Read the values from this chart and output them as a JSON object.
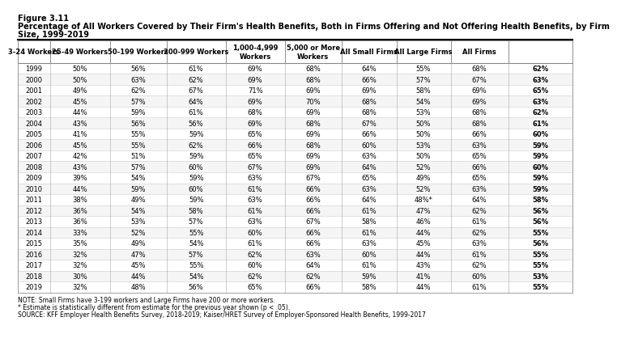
{
  "figure_label": "Figure 3.11",
  "title_line1": "Percentage of All Workers Covered by Their Firm's Health Benefits, Both in Firms Offering and Not Offering Health Benefits, by Firm",
  "title_line2": "Size, 1999-2019",
  "columns": [
    "3-24 Workers",
    "25-49 Workers",
    "50-199 Workers",
    "200-999 Workers",
    "1,000-4,999\nWorkers",
    "5,000 or More\nWorkers",
    "All Small Firms",
    "All Large Firms",
    "All Firms"
  ],
  "years": [
    1999,
    2000,
    2001,
    2002,
    2003,
    2004,
    2005,
    2006,
    2007,
    2008,
    2009,
    2010,
    2011,
    2012,
    2013,
    2014,
    2015,
    2016,
    2017,
    2018,
    2019
  ],
  "data": [
    [
      "50%",
      "56%",
      "61%",
      "69%",
      "68%",
      "64%",
      "55%",
      "68%",
      "62%"
    ],
    [
      "50%",
      "63%",
      "62%",
      "69%",
      "68%",
      "66%",
      "57%",
      "67%",
      "63%"
    ],
    [
      "49%",
      "62%",
      "67%",
      "71%",
      "69%",
      "69%",
      "58%",
      "69%",
      "65%"
    ],
    [
      "45%",
      "57%",
      "64%",
      "69%",
      "70%",
      "68%",
      "54%",
      "69%",
      "63%"
    ],
    [
      "44%",
      "59%",
      "61%",
      "68%",
      "69%",
      "68%",
      "53%",
      "68%",
      "62%"
    ],
    [
      "43%",
      "56%",
      "56%",
      "69%",
      "68%",
      "67%",
      "50%",
      "68%",
      "61%"
    ],
    [
      "41%",
      "55%",
      "59%",
      "65%",
      "69%",
      "66%",
      "50%",
      "66%",
      "60%"
    ],
    [
      "45%",
      "55%",
      "62%",
      "66%",
      "68%",
      "60%",
      "53%",
      "63%",
      "59%"
    ],
    [
      "42%",
      "51%",
      "59%",
      "65%",
      "69%",
      "63%",
      "50%",
      "65%",
      "59%"
    ],
    [
      "43%",
      "57%",
      "60%",
      "67%",
      "69%",
      "64%",
      "52%",
      "66%",
      "60%"
    ],
    [
      "39%",
      "54%",
      "59%",
      "63%",
      "67%",
      "65%",
      "49%",
      "65%",
      "59%"
    ],
    [
      "44%",
      "59%",
      "60%",
      "61%",
      "66%",
      "63%",
      "52%",
      "63%",
      "59%"
    ],
    [
      "38%",
      "49%",
      "59%",
      "63%",
      "66%",
      "64%",
      "48%*",
      "64%",
      "58%"
    ],
    [
      "36%",
      "54%",
      "58%",
      "61%",
      "66%",
      "61%",
      "47%",
      "62%",
      "56%"
    ],
    [
      "36%",
      "53%",
      "57%",
      "63%",
      "67%",
      "58%",
      "46%",
      "61%",
      "56%"
    ],
    [
      "33%",
      "52%",
      "55%",
      "60%",
      "66%",
      "61%",
      "44%",
      "62%",
      "55%"
    ],
    [
      "35%",
      "49%",
      "54%",
      "61%",
      "66%",
      "63%",
      "45%",
      "63%",
      "56%"
    ],
    [
      "32%",
      "47%",
      "57%",
      "62%",
      "63%",
      "60%",
      "44%",
      "61%",
      "55%"
    ],
    [
      "32%",
      "45%",
      "55%",
      "60%",
      "64%",
      "61%",
      "43%",
      "62%",
      "55%"
    ],
    [
      "30%",
      "44%",
      "54%",
      "62%",
      "62%",
      "59%",
      "41%",
      "60%",
      "53%"
    ],
    [
      "32%",
      "48%",
      "56%",
      "65%",
      "66%",
      "58%",
      "44%",
      "61%",
      "55%"
    ]
  ],
  "note": "NOTE: Small Firms have 3-199 workers and Large Firms have 200 or more workers.",
  "asterisk_note": "* Estimate is statistically different from estimate for the previous year shown (p < .05).",
  "source": "SOURCE: KFF Employer Health Benefits Survey, 2018-2019; Kaiser/HRET Survey of Employer-Sponsored Health Benefits, 1999-2017"
}
